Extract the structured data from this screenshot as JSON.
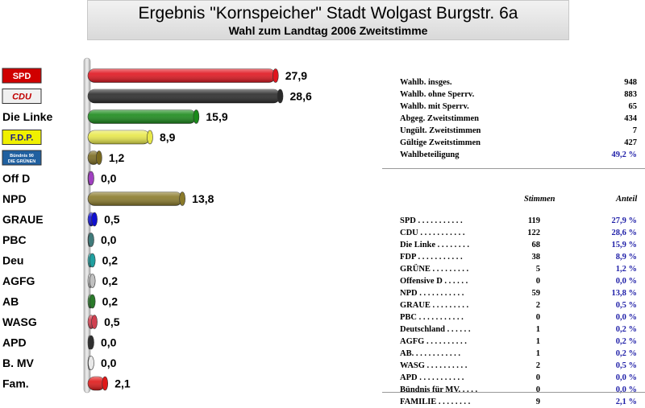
{
  "header": {
    "title": "Ergebnis \"Kornspeicher\" Stadt Wolgast Burgstr. 6a",
    "subtitle": "Wahl zum Landtag 2006 Zweitstimme"
  },
  "chart_data": {
    "type": "bar",
    "orientation": "horizontal",
    "categories": [
      "SPD",
      "CDU",
      "Die Linke",
      "F.D.P.",
      "Bündnis 90 Die Grünen",
      "Off D",
      "NPD",
      "GRAUE",
      "PBC",
      "Deu",
      "AGFG",
      "AB",
      "WASG",
      "APD",
      "B. MV",
      "Fam."
    ],
    "values": [
      27.9,
      28.6,
      15.9,
      8.9,
      1.2,
      0.0,
      13.8,
      0.5,
      0.0,
      0.2,
      0.2,
      0.2,
      0.5,
      0.0,
      0.0,
      2.1
    ],
    "value_labels": [
      "27,9",
      "28,6",
      "15,9",
      "8,9",
      "1,2",
      "0,0",
      "13,8",
      "0,5",
      "0,0",
      "0,2",
      "0,2",
      "0,2",
      "0,5",
      "0,0",
      "0,0",
      "2,1"
    ],
    "text_labels": [
      "",
      "",
      "Die Linke",
      "",
      "",
      "Off D",
      "NPD",
      "GRAUE",
      "PBC",
      "Deu",
      "AGFG",
      "AB",
      "WASG",
      "APD",
      "B. MV",
      "Fam."
    ],
    "logo_labels": [
      "SPD",
      "CDU",
      "",
      "F.D.P.",
      "Bündnis 90 DIE GRÜNEN",
      "",
      "",
      "",
      "",
      "",
      "",
      "",
      "",
      "",
      "",
      ""
    ],
    "colors": [
      "#e0141e",
      "#2a2a2a",
      "#1a8a1a",
      "#e8e84a",
      "#7a6a20",
      "#a040c0",
      "#8a7a2a",
      "#1010d0",
      "#407a7a",
      "#20a0a0",
      "#c0c0c0",
      "#2a7a2a",
      "#d04050",
      "#303030",
      "#e8e8e8",
      "#e01818"
    ],
    "xlim": [
      0,
      30
    ]
  },
  "stats": {
    "summary": [
      {
        "label": "Wahlb. insges.",
        "value": "948"
      },
      {
        "label": "Wahlb. ohne Sperrv.",
        "value": "883"
      },
      {
        "label": "Wahlb. mit Sperrv.",
        "value": "65"
      },
      {
        "label": "Abgeg. Zweitstimmen",
        "value": "434"
      },
      {
        "label": "Ungült. Zweitstimmen",
        "value": "7"
      },
      {
        "label": "Gültige Zweitstimmen",
        "value": "427"
      },
      {
        "label": "Wahlbeteiligung",
        "value": "49,2 %"
      }
    ],
    "col_votes": "Stimmen",
    "col_share": "Anteil",
    "parties": [
      {
        "label": "SPD . . . . . . . . . . .",
        "votes": "119",
        "pct": "27,9 %"
      },
      {
        "label": "CDU . . . . . . . . . . .",
        "votes": "122",
        "pct": "28,6 %"
      },
      {
        "label": "Die Linke . . . . . . . .",
        "votes": "68",
        "pct": "15,9 %"
      },
      {
        "label": "FDP . . . . . . . . . . .",
        "votes": "38",
        "pct": "8,9 %"
      },
      {
        "label": "GRÜNE . . . . . . . . .",
        "votes": "5",
        "pct": "1,2 %"
      },
      {
        "label": "Offensive D . . . . . .",
        "votes": "0",
        "pct": "0,0 %"
      },
      {
        "label": "NPD . . . . . . . . . . .",
        "votes": "59",
        "pct": "13,8 %"
      },
      {
        "label": "GRAUE . . . . . . . . .",
        "votes": "2",
        "pct": "0,5 %"
      },
      {
        "label": "PBC . . . . . . . . . . .",
        "votes": "0",
        "pct": "0,0 %"
      },
      {
        "label": "Deutschland . . . . . .",
        "votes": "1",
        "pct": "0,2 %"
      },
      {
        "label": "AGFG . . . . . . . . . .",
        "votes": "1",
        "pct": "0,2 %"
      },
      {
        "label": "AB. . . . . . . . . . . .",
        "votes": "1",
        "pct": "0,2 %"
      },
      {
        "label": "WASG . . . . . . . . . .",
        "votes": "2",
        "pct": "0,5 %"
      },
      {
        "label": "APD . . . . . . . . . . .",
        "votes": "0",
        "pct": "0,0 %"
      },
      {
        "label": "Bündnis für MV. . . . .",
        "votes": "0",
        "pct": "0,0 %"
      },
      {
        "label": "FAMILIE . . . . . . . .",
        "votes": "9",
        "pct": "2,1 %"
      }
    ]
  }
}
